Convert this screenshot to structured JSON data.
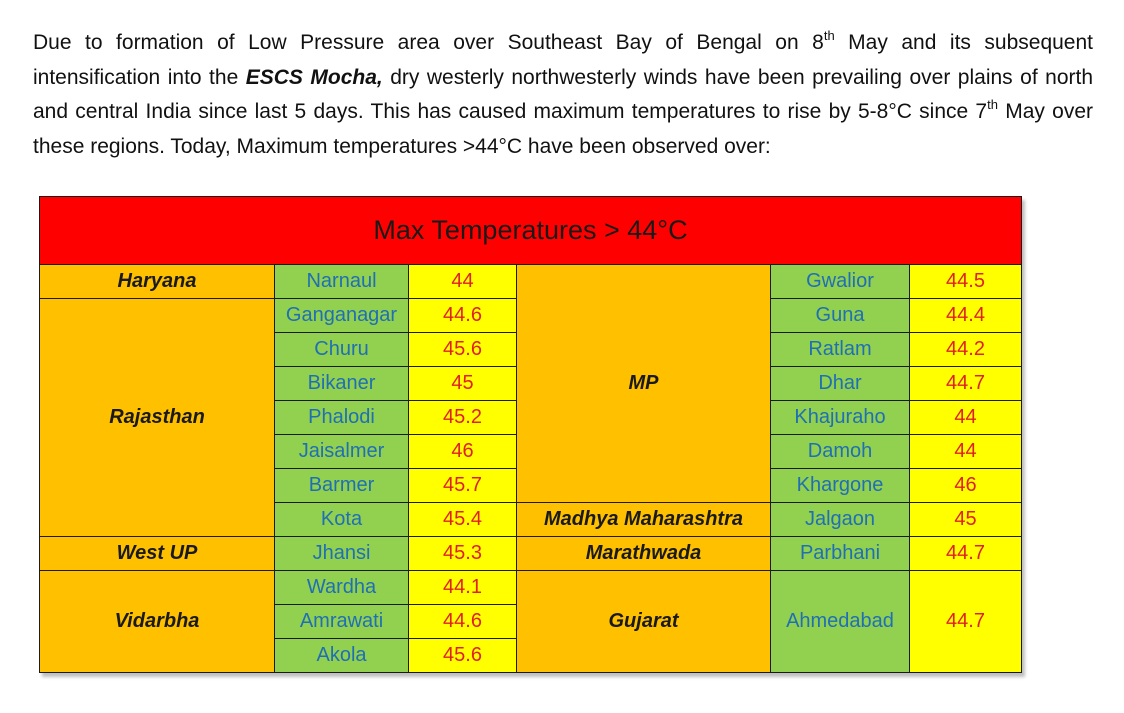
{
  "paragraph": {
    "p1": "Due to formation of Low Pressure area over Southeast Bay of Bengal on 8",
    "sup1": "th",
    "p2": " May and its subsequent intensification into the ",
    "em": "ESCS Mocha,",
    "p3": " dry westerly northwesterly winds have been prevailing over plains of north and central India since last 5 days. This has caused maximum temperatures to rise by 5-8°C since 7",
    "sup2": "th",
    "p4": " May over these regions. Today, Maximum temperatures >44°C have been observed over:"
  },
  "table": {
    "title": "Max Temperatures > 44°C",
    "left": {
      "states": {
        "haryana": "Haryana",
        "rajasthan": "Rajasthan",
        "westup": "West UP",
        "vidarbha": "Vidarbha"
      },
      "rows": [
        {
          "city": "Narnaul",
          "value": "44"
        },
        {
          "city": "Ganganagar",
          "value": "44.6"
        },
        {
          "city": "Churu",
          "value": "45.6"
        },
        {
          "city": "Bikaner",
          "value": "45"
        },
        {
          "city": "Phalodi",
          "value": "45.2"
        },
        {
          "city": "Jaisalmer",
          "value": "46"
        },
        {
          "city": "Barmer",
          "value": "45.7"
        },
        {
          "city": "Kota",
          "value": "45.4"
        },
        {
          "city": "Jhansi",
          "value": "45.3"
        },
        {
          "city": "Wardha",
          "value": "44.1"
        },
        {
          "city": "Amrawati",
          "value": "44.6"
        },
        {
          "city": "Akola",
          "value": "45.6"
        }
      ]
    },
    "right": {
      "states": {
        "mp": "MP",
        "madhya_maharashtra": "Madhya Maharashtra",
        "marathwada": "Marathwada",
        "gujarat": "Gujarat"
      },
      "rows": [
        {
          "city": "Gwalior",
          "value": "44.5"
        },
        {
          "city": "Guna",
          "value": "44.4"
        },
        {
          "city": "Ratlam",
          "value": "44.2"
        },
        {
          "city": "Dhar",
          "value": "44.7"
        },
        {
          "city": "Khajuraho",
          "value": "44"
        },
        {
          "city": "Damoh",
          "value": "44"
        },
        {
          "city": "Khargone",
          "value": "46"
        },
        {
          "city": "Jalgaon",
          "value": "45"
        },
        {
          "city": "Parbhani",
          "value": "44.7"
        },
        {
          "city": "Ahmedabad",
          "value": "44.7"
        }
      ]
    }
  }
}
